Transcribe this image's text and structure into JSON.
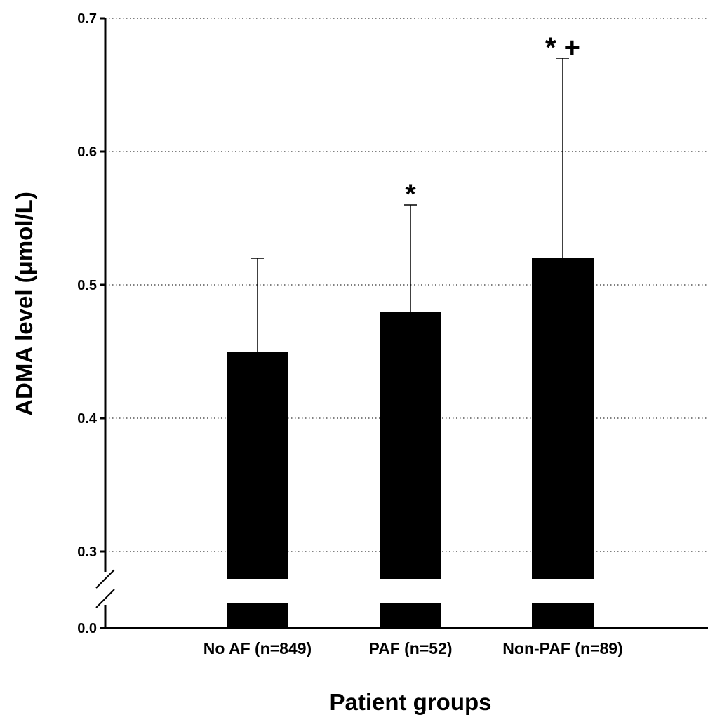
{
  "chart_data": {
    "type": "bar",
    "categories": [
      "No AF (n=849)",
      "PAF (n=52)",
      "Non-PAF (n=89)"
    ],
    "values": [
      0.45,
      0.48,
      0.52
    ],
    "error_upper": [
      0.52,
      0.56,
      0.67
    ],
    "significance_marks": [
      "",
      "*",
      "* +"
    ],
    "xlabel": "Patient groups",
    "ylabel": "ADMA level (μmol/L)",
    "ylim": [
      0.3,
      0.7
    ],
    "yticks": [
      0.3,
      0.4,
      0.5,
      0.6,
      0.7
    ],
    "ytick_labels": [
      "0.3",
      "0.4",
      "0.5",
      "0.6",
      "0.7"
    ],
    "axis_break": true,
    "baseline_tick_label": "0.0",
    "grid": "horizontal dotted",
    "bar_color": "#000000"
  }
}
